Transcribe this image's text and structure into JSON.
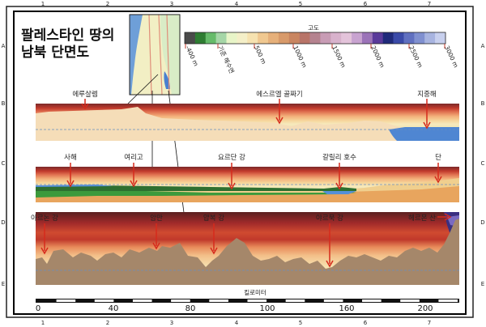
{
  "title_lines": [
    "팔레스타인 땅의",
    "남북 단면도"
  ],
  "grid": {
    "columns": [
      "1",
      "2",
      "3",
      "4",
      "5",
      "6",
      "7"
    ],
    "rows": [
      "A",
      "B",
      "C",
      "D",
      "E"
    ]
  },
  "legend": {
    "title": "고도",
    "ticks": [
      "-400 m",
      "기준 해수면",
      "500 m",
      "1000 m",
      "1500 m",
      "2000 m",
      "2500 m",
      "3000 m"
    ],
    "colors": [
      "#4a4a4a",
      "#2e7d32",
      "#66bb6a",
      "#a5d6a7",
      "#e8f5c8",
      "#f4efc8",
      "#f6e2b0",
      "#f0c890",
      "#e6b07a",
      "#d89a6a",
      "#c98560",
      "#b87468",
      "#b5838f",
      "#c89cb5",
      "#d8b2cc",
      "#e3c3da",
      "#c8a3d0",
      "#9b73b8",
      "#5a3a9a",
      "#1f2a7a",
      "#3a4aa8",
      "#6070c0",
      "#8090d0",
      "#a8b4e0",
      "#c8d0ee"
    ]
  },
  "profiles": [
    {
      "labels": [
        "에루살렘",
        "에스르엘 골짜기",
        "지중해"
      ]
    },
    {
      "labels": [
        "사해",
        "여리고",
        "요르단 강",
        "갈릴리 호수",
        "단"
      ]
    },
    {
      "labels": [
        "아르논 강",
        "암만",
        "얍복 강",
        "야르묵 강",
        "헤르몬 산"
      ]
    }
  ],
  "scale": {
    "title": "킬로미터",
    "ticks": [
      "0",
      "40",
      "80",
      "100",
      "160",
      "200"
    ]
  }
}
